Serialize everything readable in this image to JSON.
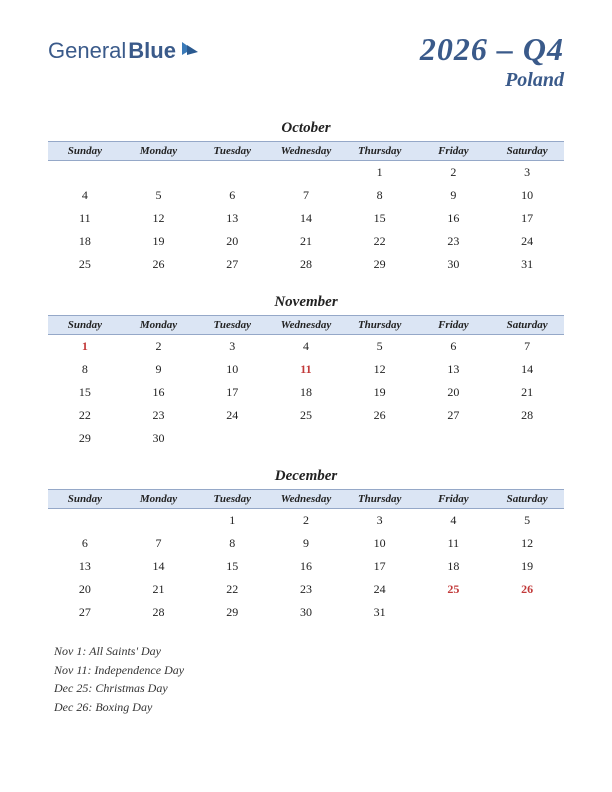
{
  "logo": {
    "part1": "General",
    "part2": "Blue"
  },
  "title": {
    "main": "2026 – Q4",
    "sub": "Poland"
  },
  "dayHeaders": [
    "Sunday",
    "Monday",
    "Tuesday",
    "Wednesday",
    "Thursday",
    "Friday",
    "Saturday"
  ],
  "style": {
    "headerBg": "#dbe5f4",
    "headerBorder": "#95a8c8",
    "accentColor": "#3a5a8a",
    "holidayColor": "#c23a3a",
    "textColor": "#222222",
    "bodyFontSize": 12,
    "headerFontSize": 11,
    "monthNameFontSize": 15,
    "titleMainFontSize": 32,
    "titleSubFontSize": 20
  },
  "months": [
    {
      "name": "October",
      "weeks": [
        [
          null,
          null,
          null,
          null,
          {
            "d": 1
          },
          {
            "d": 2
          },
          {
            "d": 3
          }
        ],
        [
          {
            "d": 4
          },
          {
            "d": 5
          },
          {
            "d": 6
          },
          {
            "d": 7
          },
          {
            "d": 8
          },
          {
            "d": 9
          },
          {
            "d": 10
          }
        ],
        [
          {
            "d": 11
          },
          {
            "d": 12
          },
          {
            "d": 13
          },
          {
            "d": 14
          },
          {
            "d": 15
          },
          {
            "d": 16
          },
          {
            "d": 17
          }
        ],
        [
          {
            "d": 18
          },
          {
            "d": 19
          },
          {
            "d": 20
          },
          {
            "d": 21
          },
          {
            "d": 22
          },
          {
            "d": 23
          },
          {
            "d": 24
          }
        ],
        [
          {
            "d": 25
          },
          {
            "d": 26
          },
          {
            "d": 27
          },
          {
            "d": 28
          },
          {
            "d": 29
          },
          {
            "d": 30
          },
          {
            "d": 31
          }
        ]
      ]
    },
    {
      "name": "November",
      "weeks": [
        [
          {
            "d": 1,
            "hol": true
          },
          {
            "d": 2
          },
          {
            "d": 3
          },
          {
            "d": 4
          },
          {
            "d": 5
          },
          {
            "d": 6
          },
          {
            "d": 7
          }
        ],
        [
          {
            "d": 8
          },
          {
            "d": 9
          },
          {
            "d": 10
          },
          {
            "d": 11,
            "hol": true
          },
          {
            "d": 12
          },
          {
            "d": 13
          },
          {
            "d": 14
          }
        ],
        [
          {
            "d": 15
          },
          {
            "d": 16
          },
          {
            "d": 17
          },
          {
            "d": 18
          },
          {
            "d": 19
          },
          {
            "d": 20
          },
          {
            "d": 21
          }
        ],
        [
          {
            "d": 22
          },
          {
            "d": 23
          },
          {
            "d": 24
          },
          {
            "d": 25
          },
          {
            "d": 26
          },
          {
            "d": 27
          },
          {
            "d": 28
          }
        ],
        [
          {
            "d": 29
          },
          {
            "d": 30
          },
          null,
          null,
          null,
          null,
          null
        ]
      ]
    },
    {
      "name": "December",
      "weeks": [
        [
          null,
          null,
          {
            "d": 1
          },
          {
            "d": 2
          },
          {
            "d": 3
          },
          {
            "d": 4
          },
          {
            "d": 5
          }
        ],
        [
          {
            "d": 6
          },
          {
            "d": 7
          },
          {
            "d": 8
          },
          {
            "d": 9
          },
          {
            "d": 10
          },
          {
            "d": 11
          },
          {
            "d": 12
          }
        ],
        [
          {
            "d": 13
          },
          {
            "d": 14
          },
          {
            "d": 15
          },
          {
            "d": 16
          },
          {
            "d": 17
          },
          {
            "d": 18
          },
          {
            "d": 19
          }
        ],
        [
          {
            "d": 20
          },
          {
            "d": 21
          },
          {
            "d": 22
          },
          {
            "d": 23
          },
          {
            "d": 24
          },
          {
            "d": 25,
            "hol": true
          },
          {
            "d": 26,
            "hol": true
          }
        ],
        [
          {
            "d": 27
          },
          {
            "d": 28
          },
          {
            "d": 29
          },
          {
            "d": 30
          },
          {
            "d": 31
          },
          null,
          null
        ]
      ]
    }
  ],
  "holidays": [
    "Nov 1: All Saints' Day",
    "Nov 11: Independence Day",
    "Dec 25: Christmas Day",
    "Dec 26: Boxing Day"
  ]
}
